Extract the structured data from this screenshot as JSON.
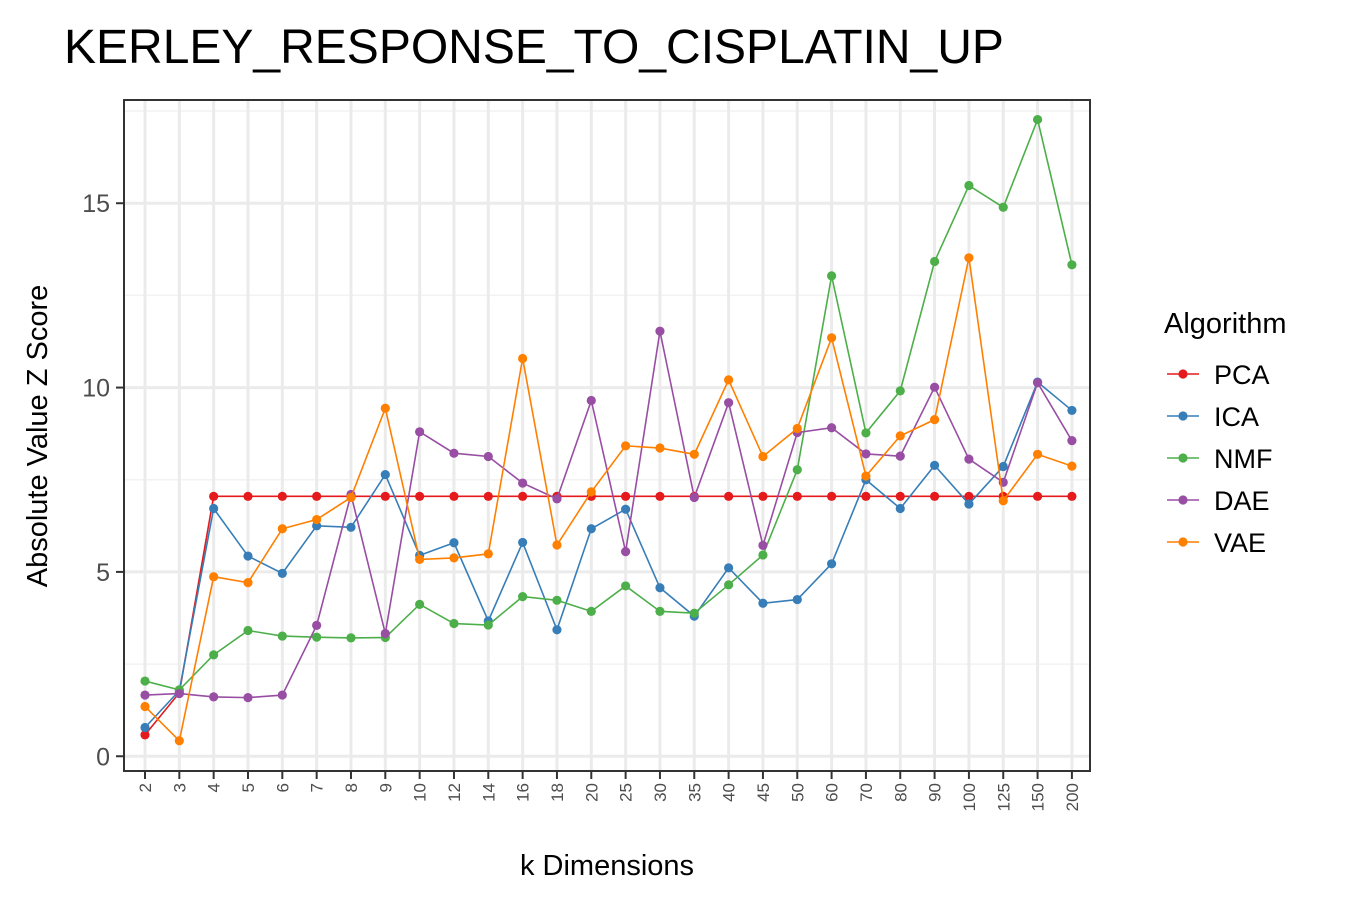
{
  "chart_data": {
    "type": "line",
    "title": "KERLEY_RESPONSE_TO_CISPLATIN_UP",
    "xlabel": "k Dimensions",
    "ylabel": "Absolute Value Z Score",
    "categories": [
      "2",
      "3",
      "4",
      "5",
      "6",
      "7",
      "8",
      "9",
      "10",
      "12",
      "14",
      "16",
      "18",
      "20",
      "25",
      "30",
      "35",
      "40",
      "45",
      "50",
      "60",
      "70",
      "80",
      "90",
      "100",
      "125",
      "150",
      "200"
    ],
    "ylim": [
      -0.4,
      17.8
    ],
    "yticks": [
      0,
      5,
      10,
      15
    ],
    "ytick_labels": [
      "0",
      "5",
      "10",
      "15"
    ],
    "grid": true,
    "legend": {
      "title": "Algorithm",
      "position": "right"
    },
    "series": [
      {
        "name": "PCA",
        "color": "#E41A1C",
        "values": [
          0.58,
          1.72,
          7.05,
          7.05,
          7.05,
          7.05,
          7.05,
          7.05,
          7.05,
          7.05,
          7.05,
          7.05,
          7.05,
          7.05,
          7.05,
          7.05,
          7.05,
          7.05,
          7.05,
          7.05,
          7.05,
          7.05,
          7.05,
          7.05,
          7.05,
          7.05,
          7.05,
          7.05
        ]
      },
      {
        "name": "ICA",
        "color": "#377EB8",
        "values": [
          0.78,
          1.78,
          6.72,
          5.43,
          4.96,
          6.25,
          6.21,
          7.64,
          5.45,
          5.79,
          3.67,
          5.8,
          3.43,
          6.17,
          6.7,
          4.57,
          3.8,
          5.11,
          4.15,
          4.25,
          5.22,
          7.5,
          6.72,
          7.89,
          6.84,
          7.86,
          10.15,
          9.38
        ]
      },
      {
        "name": "NMF",
        "color": "#4DAF4A",
        "values": [
          2.04,
          1.8,
          2.75,
          3.41,
          3.26,
          3.23,
          3.21,
          3.22,
          4.12,
          3.6,
          3.56,
          4.33,
          4.23,
          3.93,
          4.62,
          3.93,
          3.88,
          4.65,
          5.46,
          7.77,
          13.03,
          8.77,
          9.91,
          13.42,
          15.48,
          14.89,
          17.27,
          13.33
        ]
      },
      {
        "name": "DAE",
        "color": "#984EA3",
        "values": [
          1.66,
          1.7,
          1.61,
          1.59,
          1.66,
          3.55,
          7.1,
          3.33,
          8.8,
          8.22,
          8.13,
          7.41,
          6.98,
          9.65,
          5.55,
          11.53,
          7.02,
          9.59,
          5.72,
          8.78,
          8.91,
          8.2,
          8.14,
          10.01,
          8.06,
          7.43,
          10.13,
          8.56
        ]
      },
      {
        "name": "VAE",
        "color": "#FF7F00",
        "values": [
          1.35,
          0.42,
          4.87,
          4.71,
          6.17,
          6.42,
          7.02,
          9.44,
          5.34,
          5.38,
          5.49,
          10.79,
          5.73,
          7.17,
          8.42,
          8.36,
          8.19,
          10.21,
          8.13,
          8.89,
          11.35,
          7.6,
          8.69,
          9.13,
          13.52,
          6.93,
          8.19,
          7.87
        ]
      }
    ]
  }
}
